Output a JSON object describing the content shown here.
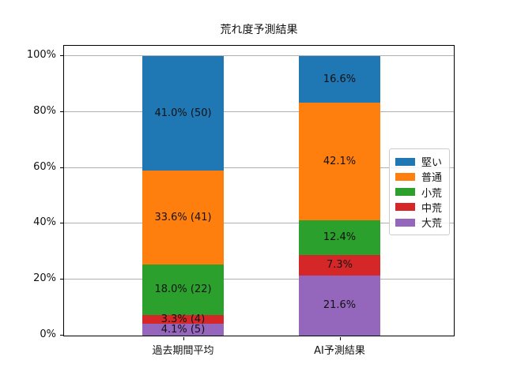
{
  "chart_data": {
    "type": "bar",
    "variant": "stacked-percentage",
    "title": "荒れ度予測結果",
    "categories": [
      "過去期間平均",
      "AI予測結果"
    ],
    "series": [
      {
        "name": "堅い",
        "color": "#1f77b4",
        "values": [
          41.0,
          16.6
        ],
        "labels": [
          "41.0% (50)",
          "16.6%"
        ]
      },
      {
        "name": "普通",
        "color": "#ff7f0e",
        "values": [
          33.6,
          42.1
        ],
        "labels": [
          "33.6% (41)",
          "42.1%"
        ]
      },
      {
        "name": "小荒",
        "color": "#2ca02c",
        "values": [
          18.0,
          12.4
        ],
        "labels": [
          "18.0% (22)",
          "12.4%"
        ]
      },
      {
        "name": "中荒",
        "color": "#d62728",
        "values": [
          3.3,
          7.3
        ],
        "labels": [
          "3.3% (4)",
          "7.3%"
        ]
      },
      {
        "name": "大荒",
        "color": "#9467bd",
        "values": [
          4.1,
          21.6
        ],
        "labels": [
          "4.1% (5)",
          "21.6%"
        ]
      }
    ],
    "stack_order_bottom_to_top": [
      "大荒",
      "中荒",
      "小荒",
      "普通",
      "堅い"
    ],
    "y_ticks": [
      {
        "value": 0,
        "label": "0%"
      },
      {
        "value": 20,
        "label": "20%"
      },
      {
        "value": 40,
        "label": "40%"
      },
      {
        "value": 60,
        "label": "60%"
      },
      {
        "value": 80,
        "label": "80%"
      },
      {
        "value": 100,
        "label": "100%"
      }
    ],
    "ylim": [
      0,
      104.5
    ],
    "grid": true,
    "grid_color": "#b0b0b0",
    "legend_position": "right-inside",
    "legend_entries": [
      "堅い",
      "普通",
      "小荒",
      "中荒",
      "大荒"
    ]
  }
}
